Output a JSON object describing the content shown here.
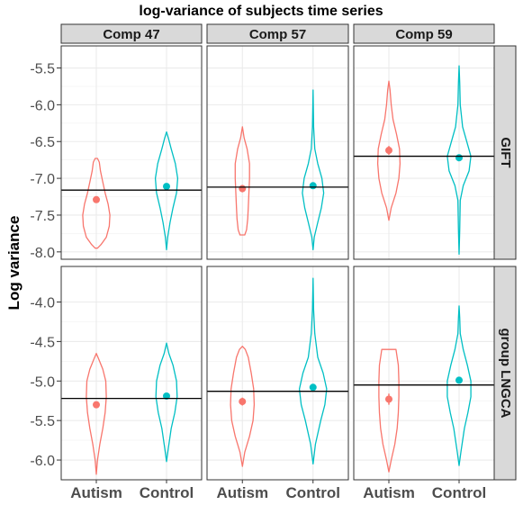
{
  "title": "log-variance of subjects time series",
  "ylabel": "Log variance",
  "colors": {
    "Autism": "#F8766D",
    "Control": "#00BFC4"
  },
  "columns": [
    "Comp 47",
    "Comp 57",
    "Comp 59"
  ],
  "rows": [
    "GIFT",
    "group LNGCA"
  ],
  "x_categories": [
    "Autism",
    "Control"
  ],
  "chart_data": {
    "type": "violin",
    "title": "log-variance of subjects time series",
    "ylabel": "Log variance",
    "facet_columns": [
      "Comp 47",
      "Comp 57",
      "Comp 59"
    ],
    "facet_rows": [
      "GIFT",
      "group LNGCA"
    ],
    "categories": [
      "Autism",
      "Control"
    ],
    "panel_rows": [
      {
        "row": "GIFT",
        "ylim": [
          -8.1,
          -5.2
        ],
        "yticks": [
          -8.0,
          -7.5,
          -7.0,
          -6.5,
          -6.0,
          -5.5
        ],
        "ytick_labels": [
          "-8.0",
          "-7.5",
          "-7.0",
          "-6.5",
          "-6.0",
          "-5.5"
        ]
      },
      {
        "row": "group LNGCA",
        "ylim": [
          -6.25,
          -3.55
        ],
        "yticks": [
          -6.0,
          -5.5,
          -5.0,
          -4.5,
          -4.0
        ],
        "ytick_labels": [
          "-6.0",
          "-5.5",
          "-5.0",
          "-4.5",
          "-4.0"
        ]
      }
    ],
    "panels": [
      {
        "row": "GIFT",
        "col": "Comp 47",
        "hline": -7.16,
        "groups": [
          {
            "name": "Autism",
            "mean": -7.29,
            "se": 0.04,
            "violin": [
              [
                -7.95,
                0.02
              ],
              [
                -7.9,
                0.08
              ],
              [
                -7.8,
                0.17
              ],
              [
                -7.65,
                0.22
              ],
              [
                -7.5,
                0.23
              ],
              [
                -7.35,
                0.2
              ],
              [
                -7.2,
                0.15
              ],
              [
                -7.05,
                0.11
              ],
              [
                -6.9,
                0.07
              ],
              [
                -6.78,
                0.05
              ],
              [
                -6.73,
                0.02
              ]
            ]
          },
          {
            "name": "Control",
            "mean": -7.11,
            "se": 0.03,
            "violin": [
              [
                -7.97,
                0.0
              ],
              [
                -7.8,
                0.02
              ],
              [
                -7.6,
                0.06
              ],
              [
                -7.4,
                0.11
              ],
              [
                -7.2,
                0.17
              ],
              [
                -7.0,
                0.19
              ],
              [
                -6.8,
                0.15
              ],
              [
                -6.6,
                0.08
              ],
              [
                -6.45,
                0.03
              ],
              [
                -6.37,
                0.0
              ]
            ]
          }
        ]
      },
      {
        "row": "GIFT",
        "col": "Comp 57",
        "hline": -7.12,
        "groups": [
          {
            "name": "Autism",
            "mean": -7.14,
            "se": 0.05,
            "violin": [
              [
                -7.77,
                0.04
              ],
              [
                -7.7,
                0.07
              ],
              [
                -7.55,
                0.09
              ],
              [
                -7.4,
                0.1
              ],
              [
                -7.2,
                0.11
              ],
              [
                -7.0,
                0.12
              ],
              [
                -6.8,
                0.12
              ],
              [
                -6.6,
                0.08
              ],
              [
                -6.45,
                0.03
              ],
              [
                -6.3,
                0.0
              ]
            ]
          },
          {
            "name": "Control",
            "mean": -7.1,
            "se": 0.02,
            "violin": [
              [
                -7.97,
                0.0
              ],
              [
                -7.8,
                0.02
              ],
              [
                -7.6,
                0.08
              ],
              [
                -7.4,
                0.14
              ],
              [
                -7.2,
                0.18
              ],
              [
                -7.0,
                0.15
              ],
              [
                -6.8,
                0.08
              ],
              [
                -6.6,
                0.03
              ],
              [
                -6.3,
                0.01
              ],
              [
                -5.8,
                0.0
              ]
            ]
          }
        ]
      },
      {
        "row": "GIFT",
        "col": "Comp 59",
        "hline": -6.7,
        "groups": [
          {
            "name": "Autism",
            "mean": -6.62,
            "se": 0.06,
            "violin": [
              [
                -7.57,
                0.0
              ],
              [
                -7.4,
                0.04
              ],
              [
                -7.2,
                0.12
              ],
              [
                -7.0,
                0.17
              ],
              [
                -6.8,
                0.19
              ],
              [
                -6.6,
                0.18
              ],
              [
                -6.4,
                0.13
              ],
              [
                -6.2,
                0.07
              ],
              [
                -6.0,
                0.04
              ],
              [
                -5.8,
                0.02
              ],
              [
                -5.68,
                0.0
              ]
            ]
          },
          {
            "name": "Control",
            "mean": -6.72,
            "se": 0.02,
            "violin": [
              [
                -8.03,
                0.0
              ],
              [
                -7.7,
                0.01
              ],
              [
                -7.3,
                0.02
              ],
              [
                -7.1,
                0.07
              ],
              [
                -6.9,
                0.17
              ],
              [
                -6.7,
                0.2
              ],
              [
                -6.5,
                0.13
              ],
              [
                -6.3,
                0.06
              ],
              [
                -6.0,
                0.02
              ],
              [
                -5.7,
                0.01
              ],
              [
                -5.47,
                0.0
              ]
            ]
          }
        ]
      },
      {
        "row": "group LNGCA",
        "col": "Comp 47",
        "hline": -5.22,
        "groups": [
          {
            "name": "Autism",
            "mean": -5.3,
            "se": 0.04,
            "violin": [
              [
                -6.18,
                0.0
              ],
              [
                -6.0,
                0.02
              ],
              [
                -5.8,
                0.06
              ],
              [
                -5.6,
                0.11
              ],
              [
                -5.4,
                0.15
              ],
              [
                -5.2,
                0.17
              ],
              [
                -5.0,
                0.16
              ],
              [
                -4.85,
                0.11
              ],
              [
                -4.72,
                0.04
              ],
              [
                -4.65,
                0.0
              ]
            ]
          },
          {
            "name": "Control",
            "mean": -5.19,
            "se": 0.02,
            "violin": [
              [
                -6.02,
                0.0
              ],
              [
                -5.85,
                0.03
              ],
              [
                -5.6,
                0.08
              ],
              [
                -5.4,
                0.14
              ],
              [
                -5.2,
                0.18
              ],
              [
                -5.0,
                0.17
              ],
              [
                -4.8,
                0.11
              ],
              [
                -4.65,
                0.04
              ],
              [
                -4.52,
                0.0
              ]
            ]
          }
        ]
      },
      {
        "row": "group LNGCA",
        "col": "Comp 57",
        "hline": -5.13,
        "groups": [
          {
            "name": "Autism",
            "mean": -5.26,
            "se": 0.05,
            "violin": [
              [
                -6.08,
                0.0
              ],
              [
                -5.9,
                0.04
              ],
              [
                -5.7,
                0.12
              ],
              [
                -5.5,
                0.18
              ],
              [
                -5.3,
                0.2
              ],
              [
                -5.1,
                0.19
              ],
              [
                -4.9,
                0.15
              ],
              [
                -4.7,
                0.1
              ],
              [
                -4.6,
                0.05
              ],
              [
                -4.56,
                0.0
              ]
            ]
          },
          {
            "name": "Control",
            "mean": -5.08,
            "se": 0.03,
            "violin": [
              [
                -6.05,
                0.0
              ],
              [
                -5.8,
                0.04
              ],
              [
                -5.5,
                0.13
              ],
              [
                -5.3,
                0.2
              ],
              [
                -5.1,
                0.23
              ],
              [
                -4.9,
                0.17
              ],
              [
                -4.7,
                0.08
              ],
              [
                -4.4,
                0.03
              ],
              [
                -4.1,
                0.01
              ],
              [
                -3.7,
                0.0
              ]
            ]
          }
        ]
      },
      {
        "row": "group LNGCA",
        "col": "Comp 59",
        "hline": -5.05,
        "groups": [
          {
            "name": "Autism",
            "mean": -5.23,
            "se": 0.07,
            "violin": [
              [
                -6.15,
                0.0
              ],
              [
                -6.0,
                0.04
              ],
              [
                -5.8,
                0.1
              ],
              [
                -5.6,
                0.14
              ],
              [
                -5.4,
                0.16
              ],
              [
                -5.2,
                0.17
              ],
              [
                -5.0,
                0.17
              ],
              [
                -4.8,
                0.16
              ],
              [
                -4.6,
                0.12
              ],
              [
                -4.6,
                0.0
              ]
            ]
          },
          {
            "name": "Control",
            "mean": -4.99,
            "se": 0.02,
            "violin": [
              [
                -6.07,
                0.0
              ],
              [
                -5.9,
                0.03
              ],
              [
                -5.6,
                0.09
              ],
              [
                -5.4,
                0.15
              ],
              [
                -5.2,
                0.2
              ],
              [
                -5.0,
                0.2
              ],
              [
                -4.8,
                0.14
              ],
              [
                -4.6,
                0.07
              ],
              [
                -4.4,
                0.02
              ],
              [
                -4.2,
                0.01
              ],
              [
                -4.05,
                0.0
              ]
            ]
          }
        ]
      }
    ]
  }
}
